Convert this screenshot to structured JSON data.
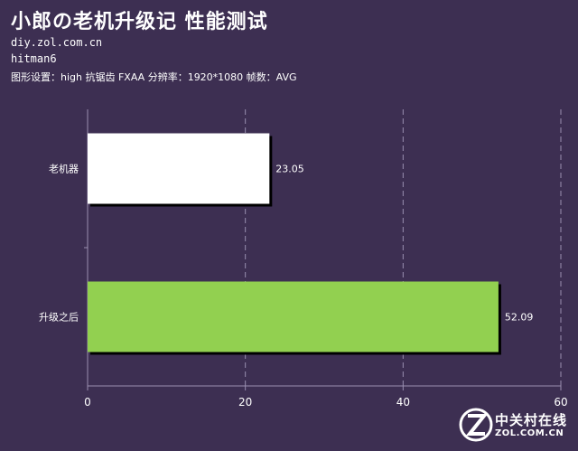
{
  "header": {
    "title": "小郎の老机升级记 性能测试",
    "site": "diy.zol.com.cn",
    "game": "hitman6",
    "settings": "图形设置：high 抗锯齿 FXAA 分辨率：1920*1080 帧数：AVG"
  },
  "chart_data": {
    "type": "bar",
    "orientation": "horizontal",
    "categories": [
      "老机器",
      "升级之后"
    ],
    "values": [
      23.05,
      52.09
    ],
    "value_labels": [
      "23.05",
      "52.09"
    ],
    "xlim": [
      0,
      60
    ],
    "x_ticks": [
      "0",
      "20",
      "40",
      "60"
    ],
    "grid": "vertical dashed",
    "colors": [
      "#ffffff",
      "#92d050"
    ]
  },
  "watermark": {
    "line1": "中关村在线",
    "line2": "ZOL.COM.CN"
  }
}
